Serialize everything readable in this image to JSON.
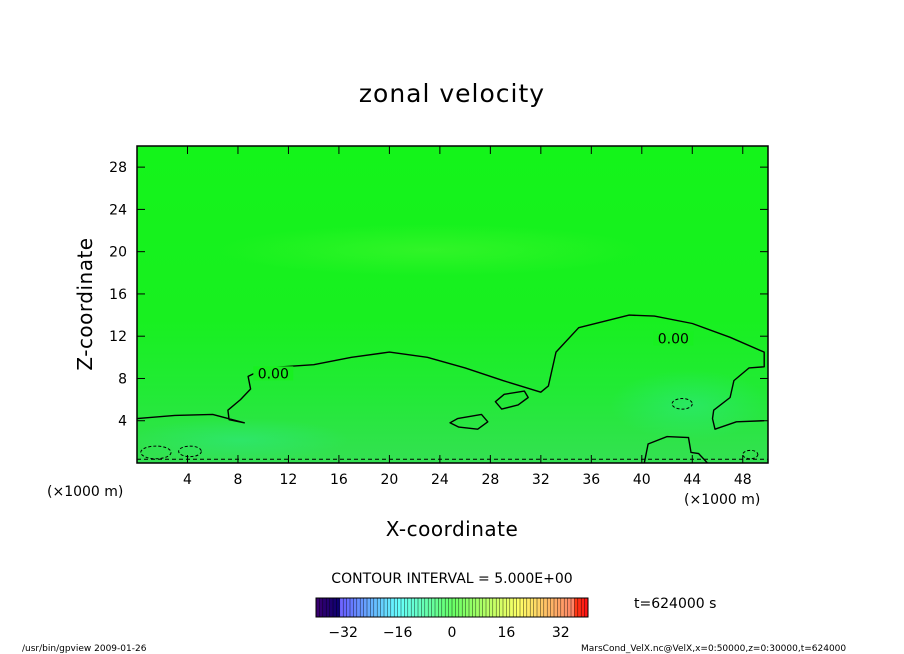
{
  "window": {
    "footer_left": "/usr/bin/gpview   2009-01-26",
    "footer_right": "MarsCond_VelX.nc@VelX,x=0:50000,z=0:30000,t=624000"
  },
  "chart_data": {
    "type": "heatmap",
    "title": "zonal velocity",
    "xlabel": "X-coordinate",
    "ylabel": "Z-coordinate",
    "x_unit_label": "(×1000 m)",
    "y_unit_label": "(×1000 m)",
    "xlim": [
      0,
      50
    ],
    "ylim": [
      0,
      30
    ],
    "x_ticks": [
      "4",
      "8",
      "12",
      "16",
      "20",
      "24",
      "28",
      "32",
      "36",
      "40",
      "44",
      "48"
    ],
    "y_ticks": [
      "4",
      "8",
      "12",
      "16",
      "20",
      "24",
      "28"
    ],
    "contour_interval_text": "CONTOUR INTERVAL = 5.000E+00",
    "time_label": "t=624000 s",
    "contour_label": "0.00",
    "zero_contour_main": [
      [
        0,
        4.2
      ],
      [
        3,
        4.5
      ],
      [
        6,
        4.6
      ],
      [
        8.5,
        3.8
      ],
      [
        7.3,
        4.1
      ],
      [
        7.2,
        5.0
      ],
      [
        8.2,
        6.0
      ],
      [
        9.0,
        7.0
      ],
      [
        8.8,
        8.2
      ],
      [
        10.2,
        9.0
      ],
      [
        14,
        9.3
      ],
      [
        17,
        10.0
      ],
      [
        20,
        10.5
      ],
      [
        23,
        10.0
      ],
      [
        26,
        9.0
      ],
      [
        29,
        7.8
      ],
      [
        32,
        6.7
      ],
      [
        32.6,
        7.3
      ],
      [
        33.2,
        10.5
      ],
      [
        35,
        12.8
      ],
      [
        39,
        14.0
      ],
      [
        41,
        13.9
      ],
      [
        44,
        13.2
      ],
      [
        47,
        11.9
      ],
      [
        49.7,
        10.5
      ],
      [
        49.7,
        9.1
      ],
      [
        48.5,
        9.0
      ],
      [
        47.3,
        7.8
      ],
      [
        47.0,
        6.2
      ],
      [
        45.7,
        5.0
      ],
      [
        45.6,
        4.2
      ],
      [
        45.8,
        3.2
      ],
      [
        47.5,
        3.9
      ],
      [
        49.7,
        4.0
      ]
    ],
    "closed_contours": [
      [
        [
          25.4,
          4.2
        ],
        [
          27.3,
          4.6
        ],
        [
          27.8,
          3.9
        ],
        [
          27.0,
          3.2
        ],
        [
          25.5,
          3.4
        ],
        [
          24.8,
          3.8
        ]
      ],
      [
        [
          29.1,
          6.5
        ],
        [
          30.7,
          6.8
        ],
        [
          31.0,
          6.2
        ],
        [
          30.2,
          5.5
        ],
        [
          28.9,
          5.1
        ],
        [
          28.4,
          5.8
        ]
      ]
    ],
    "colorbar": {
      "ticks": [
        "−32",
        "−16",
        "0",
        "16",
        "32"
      ],
      "range": [
        -40,
        40
      ]
    }
  }
}
